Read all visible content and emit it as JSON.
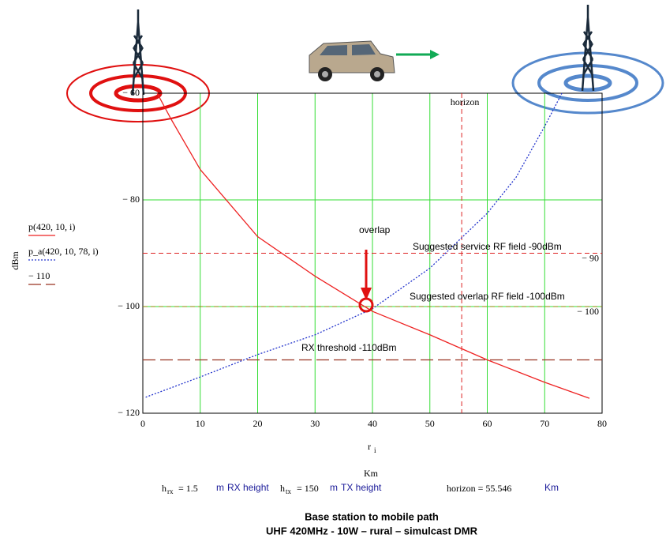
{
  "chart_data": {
    "type": "line",
    "xlim": [
      0,
      80
    ],
    "xticks": [
      0,
      10,
      20,
      30,
      40,
      50,
      60,
      70,
      80
    ],
    "ylim": [
      -120,
      -60
    ],
    "yticks": [
      {
        "value": -60,
        "label": "− 60"
      },
      {
        "value": -80,
        "label": "− 80"
      },
      {
        "value": -100,
        "label": "− 100"
      },
      {
        "value": -120,
        "label": "− 120"
      }
    ],
    "grid": true,
    "grid_color": "#33dd33",
    "y_label": "dBm",
    "x_label": "r",
    "x_label_subscript": "i",
    "x_unit": "Km",
    "series": [
      {
        "name": "p(420, 10, i)",
        "color": "#ee2222",
        "style": "solid",
        "x": [
          2.5,
          5,
          10,
          20,
          30,
          40,
          50,
          60,
          70,
          77.8
        ],
        "values": [
          -60,
          -65,
          -74.3,
          -86.9,
          -94.3,
          -100.9,
          -105.3,
          -110,
          -114.2,
          -117.2
        ]
      },
      {
        "name": "p_a(420, 10, 78, i)",
        "color": "#2233cc",
        "style": "dotted",
        "x": [
          0.5,
          10,
          20,
          30,
          40,
          50,
          60,
          65,
          70,
          73
        ],
        "values": [
          -117,
          -113.2,
          -109,
          -105.3,
          -100.4,
          -92.8,
          -82.5,
          -75.8,
          -66.2,
          -60
        ]
      },
      {
        "name": "− 110",
        "color": "#993322",
        "style": "longdash",
        "x": [
          0,
          80
        ],
        "values": [
          -110,
          -110
        ]
      }
    ],
    "markers": [
      {
        "value": -90,
        "label": "− 90",
        "color": "#dd2222"
      },
      {
        "value": -100,
        "label": "− 100",
        "color": "#888800"
      }
    ],
    "horizon": {
      "value": 55.546,
      "label": "horizon",
      "color": "#dd2222"
    },
    "annotations": [
      "overlap",
      "Suggested service RF field -90dBm",
      "Suggested overlap RF field -100dBm",
      "RX threshold -110dBm"
    ]
  },
  "parameters": {
    "rx": {
      "symbol": "h",
      "subscript": "rx",
      "equals": "= 1.5",
      "unit": "m",
      "note": "RX height"
    },
    "tx": {
      "symbol": "h",
      "subscript": "tx",
      "equals": "= 150",
      "unit": "m",
      "note": "TX height"
    },
    "horizon": {
      "text": "horizon = 55.546",
      "unit": "Km"
    }
  },
  "caption": {
    "line1": "Base station to mobile path",
    "line2": "UHF 420MHz - 10W – rural – simulcast DMR"
  }
}
